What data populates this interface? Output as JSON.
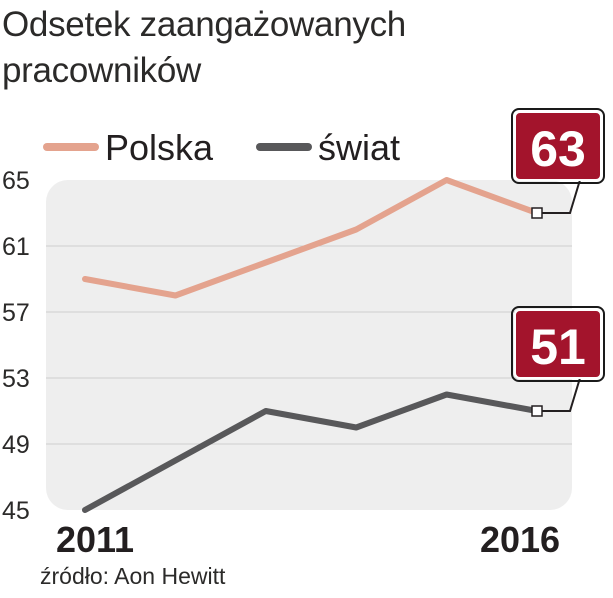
{
  "title": "Odsetek zaangażowanych pracowników",
  "source": "źródło: Aon Hewitt",
  "colors": {
    "polska": "#e4a38e",
    "swiat": "#58585a",
    "badge": "#a3142c",
    "plot_bg": "#eeeeee",
    "grid": "#cfcfcf",
    "text": "#2b2a29"
  },
  "chart_data": {
    "type": "line",
    "title": "Odsetek zaangażowanych pracowników",
    "x": [
      2011,
      2012,
      2013,
      2014,
      2015,
      2016
    ],
    "x_tick_labels": [
      "2011",
      "2016"
    ],
    "y_ticks": [
      45,
      49,
      53,
      57,
      61,
      65
    ],
    "ylim": [
      45,
      65
    ],
    "grid": true,
    "legend_position": "top-left",
    "series": [
      {
        "key": "polska",
        "name": "Polska",
        "values": [
          59,
          58,
          60,
          62,
          65,
          63
        ]
      },
      {
        "key": "swiat",
        "name": "świat",
        "values": [
          45,
          48,
          51,
          50,
          52,
          51
        ]
      }
    ],
    "end_labels": [
      {
        "series": "polska",
        "text": "63"
      },
      {
        "series": "swiat",
        "text": "51"
      }
    ]
  }
}
